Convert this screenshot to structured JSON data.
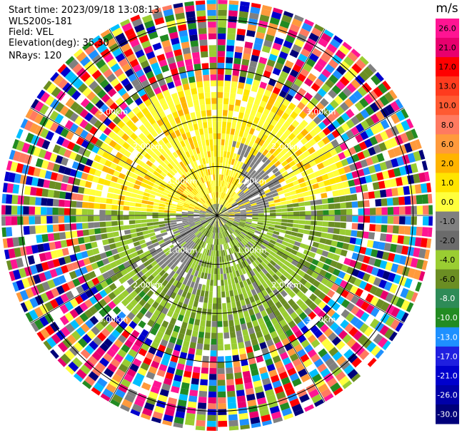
{
  "header": {
    "start_time": "Start time: 2023/09/18 13:08:13",
    "site": "WLS200s-181",
    "field": "Field: VEL",
    "elevation": "Elevation(deg): 35.30",
    "nrays": "NRays: 120"
  },
  "ppi": {
    "range_rings_km": [
      1.0,
      2.0,
      3.0
    ],
    "rings_shown": 4,
    "max_range_km": 4.4,
    "nrays": 120,
    "range_labels": [
      "1.00km",
      "2.00km",
      "3.00km"
    ],
    "spokes_deg": [
      0,
      30,
      60,
      90,
      120,
      150,
      180,
      210,
      240,
      270,
      300,
      330
    ]
  },
  "colorbar": {
    "unit": "m/s",
    "ticks": [
      "26.0",
      "21.0",
      "17.0",
      "13.0",
      "10.0",
      "8.0",
      "6.0",
      "2.0",
      "1.0",
      "0.0",
      "-1.0",
      "-2.0",
      "-4.0",
      "-6.0",
      "-8.0",
      "-10.0",
      "-13.0",
      "-17.0",
      "-21.0",
      "-26.0",
      "-30.0"
    ],
    "bands": [
      "#ff1493",
      "#e8006e",
      "#ff0000",
      "#ff3b1e",
      "#ff5a32",
      "#ff7a60",
      "#ff9a3c",
      "#ffb400",
      "#ffe400",
      "#ffff3c",
      "#808080",
      "#6b6b6b",
      "#9acd32",
      "#6b8e23",
      "#2e8b57",
      "#228b22",
      "#1e90ff",
      "#1f1fe0",
      "#0000cd",
      "#0000a8",
      "#00007a"
    ]
  }
}
